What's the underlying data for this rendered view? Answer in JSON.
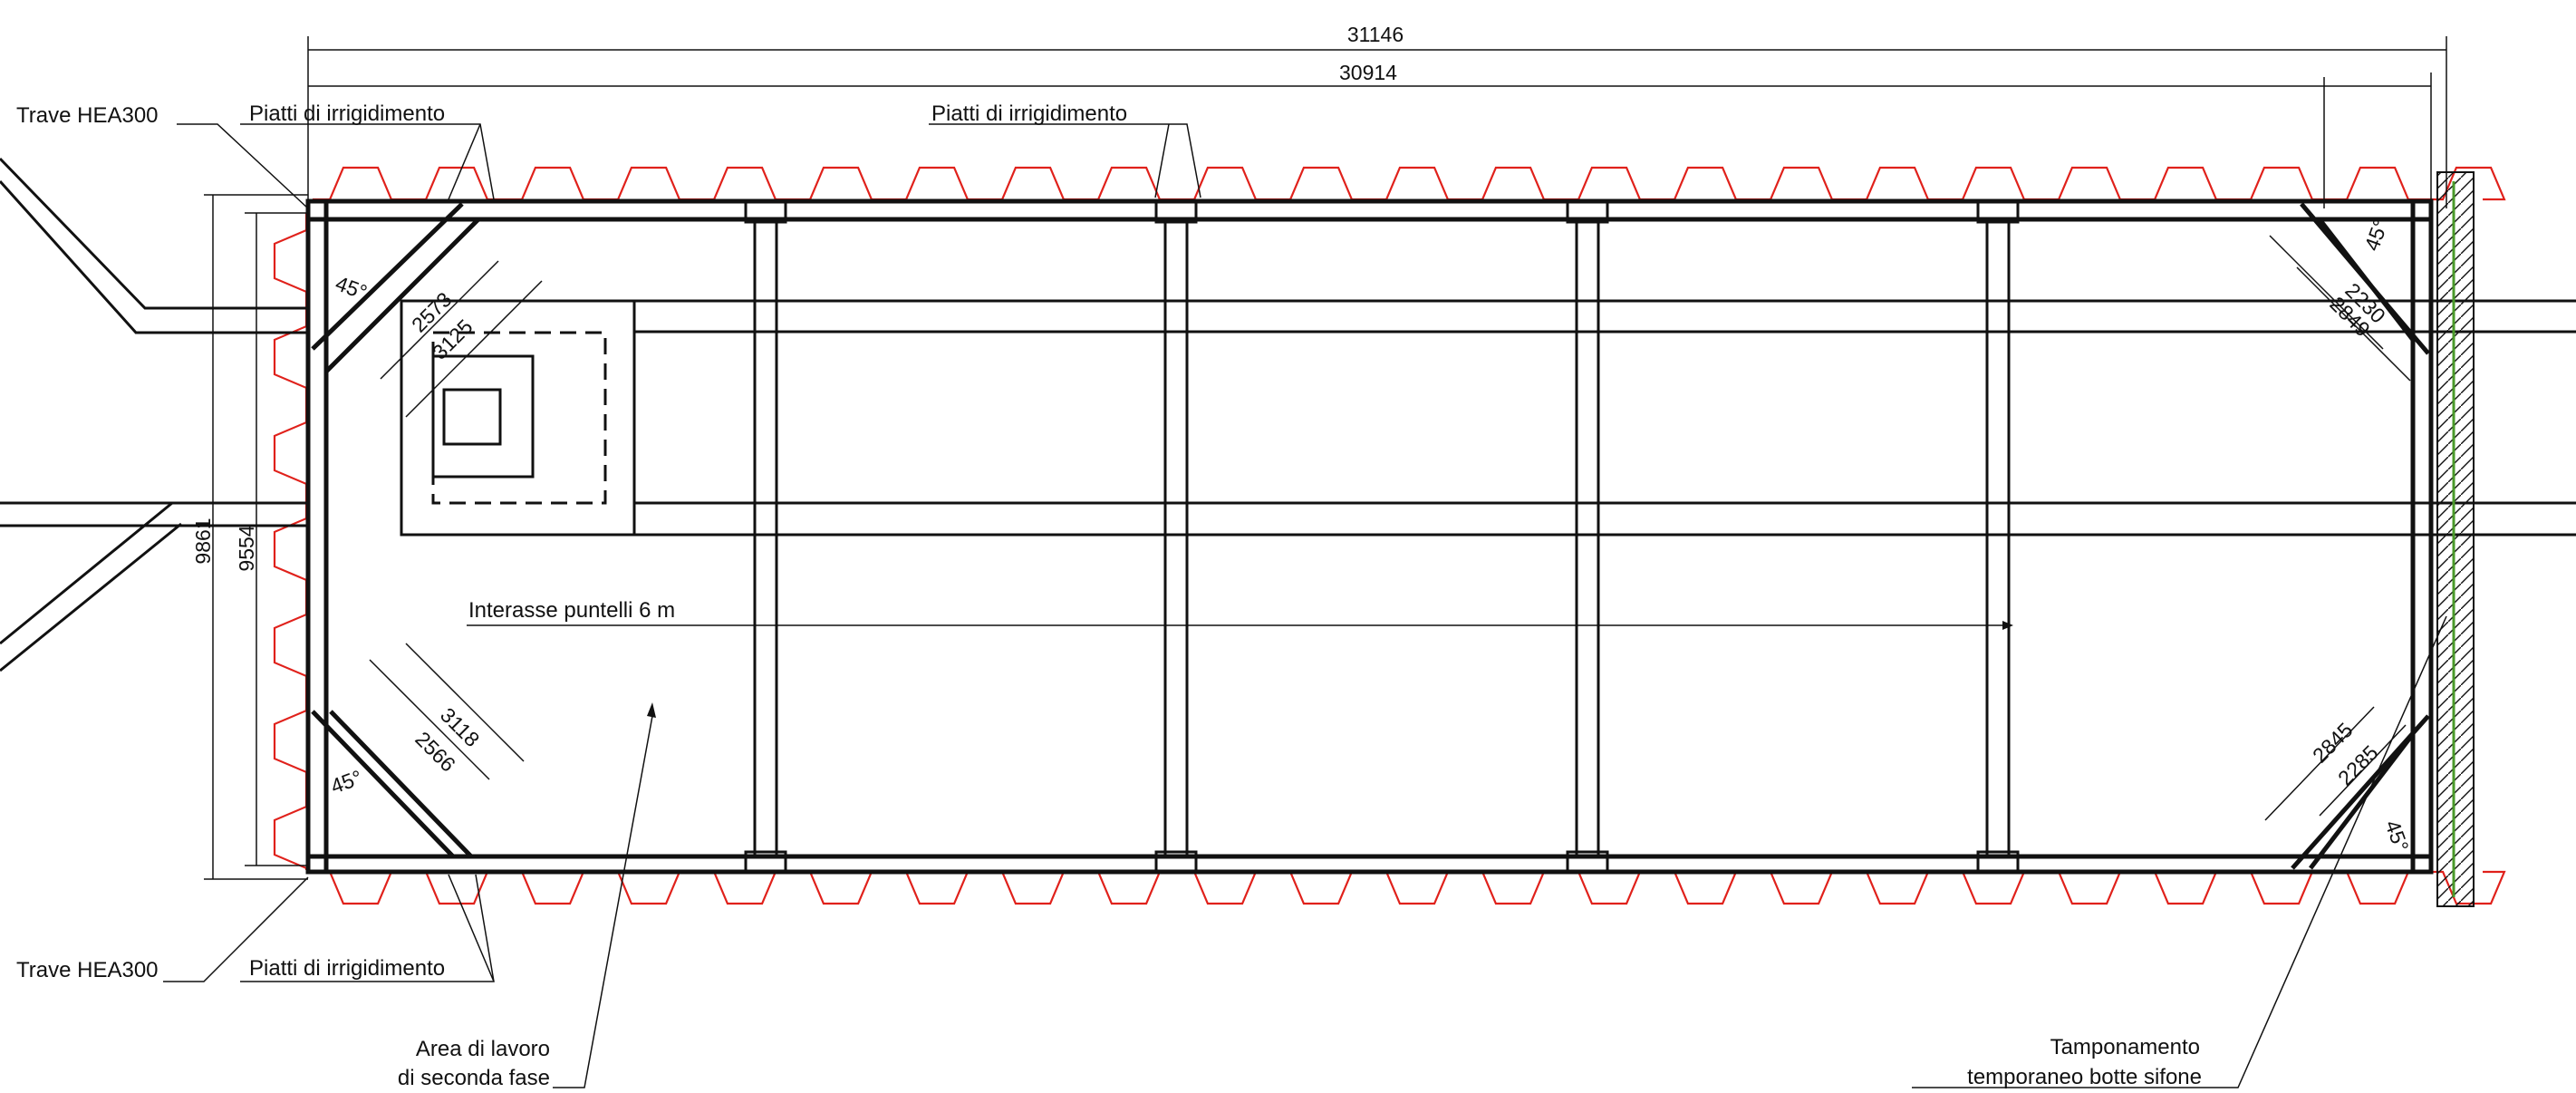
{
  "drawing": {
    "dimensions": {
      "overall_outer": "31146",
      "overall_inner": "30914",
      "height_outer": "9861",
      "height_inner": "9554",
      "tl_strut_a": "2573",
      "tl_strut_b": "3125",
      "tl_angle": "45°",
      "bl_strut_a": "3118",
      "bl_strut_b": "2566",
      "bl_angle": "45°",
      "tr_strut_a": "2230",
      "tr_strut_b": "2849",
      "tr_angle": "45°",
      "br_strut_a": "2845",
      "br_strut_b": "2285",
      "br_angle": "45°"
    },
    "labels": {
      "beam_top": "Trave HEA300",
      "beam_bottom": "Trave HEA300",
      "plates_top_left": "Piatti di irrigidimento",
      "plates_top_center": "Piatti di irrigidimento",
      "plates_bottom": "Piatti di irrigidimento",
      "strut_spacing": "Interasse puntelli 6 m",
      "work_area_line1": "Area di lavoro",
      "work_area_line2": "di seconda fase",
      "closure_line1": "Tamponamento",
      "closure_line2": "temporaneo botte sifone"
    },
    "colors": {
      "sheet_piles": "#e0211b",
      "linework": "#111111",
      "hatch_green": "#4a9a2a"
    }
  }
}
